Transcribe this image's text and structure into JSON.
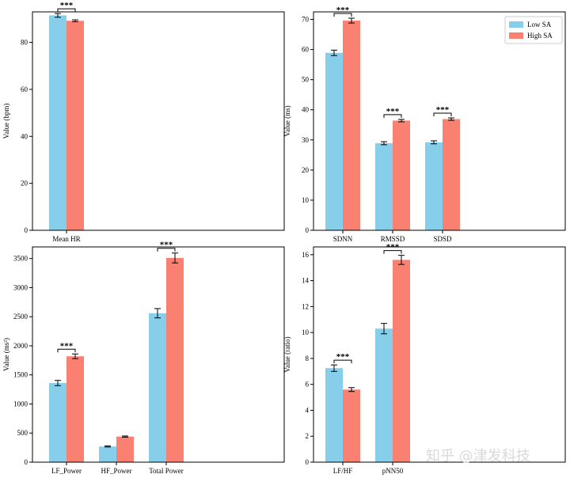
{
  "colors": {
    "low": "#87ceeb",
    "high": "#fa8072",
    "errorbar": "#000000"
  },
  "legend": {
    "placement": "top-right",
    "items": [
      "Low SA",
      "High SA"
    ]
  },
  "watermark": "知乎 @津发科技",
  "chart_data": [
    {
      "type": "bar",
      "ylabel": "Value (bpm)",
      "ylim": [
        0,
        93
      ],
      "yticks": [
        0,
        20,
        40,
        60,
        80
      ],
      "categories": [
        "Mean HR"
      ],
      "series": [
        {
          "name": "Low SA",
          "values": [
            91.5
          ],
          "err": [
            0.8
          ]
        },
        {
          "name": "High SA",
          "values": [
            89.2
          ],
          "err": [
            0.4
          ]
        }
      ],
      "significance": [
        "***"
      ],
      "show_legend": false
    },
    {
      "type": "bar",
      "ylabel": "Value (ms)",
      "ylim": [
        0,
        72.5
      ],
      "yticks": [
        0,
        10,
        20,
        30,
        40,
        50,
        60,
        70
      ],
      "categories": [
        "SDNN",
        "RMSSD",
        "SDSD"
      ],
      "series": [
        {
          "name": "Low SA",
          "values": [
            58.9,
            28.9,
            29.2
          ],
          "err": [
            0.9,
            0.5,
            0.5
          ]
        },
        {
          "name": "High SA",
          "values": [
            69.6,
            36.4,
            36.9
          ],
          "err": [
            0.8,
            0.4,
            0.4
          ]
        }
      ],
      "significance": [
        "***",
        "***",
        "***"
      ],
      "show_legend": true
    },
    {
      "type": "bar",
      "ylabel": "Value (ms²)",
      "ylim": [
        0,
        3700
      ],
      "yticks": [
        0,
        500,
        1000,
        1500,
        2000,
        2500,
        3000,
        3500
      ],
      "categories": [
        "LF_Power",
        "HF_Power",
        "Total Power"
      ],
      "series": [
        {
          "name": "Low SA",
          "values": [
            1360,
            270,
            2560
          ],
          "err": [
            45,
            10,
            80
          ]
        },
        {
          "name": "High SA",
          "values": [
            1820,
            440,
            3510
          ],
          "err": [
            40,
            10,
            85
          ]
        }
      ],
      "significance": [
        "***",
        "",
        "***"
      ],
      "show_legend": false
    },
    {
      "type": "bar",
      "ylabel": "Value (ratio)",
      "ylim": [
        0,
        16.6
      ],
      "yticks": [
        0,
        2,
        4,
        6,
        8,
        10,
        12,
        14,
        16
      ],
      "categories": [
        "LF/HF",
        "pNN50"
      ],
      "series": [
        {
          "name": "Low SA",
          "values": [
            7.25,
            10.3
          ],
          "err": [
            0.25,
            0.4
          ]
        },
        {
          "name": "High SA",
          "values": [
            5.6,
            15.6
          ],
          "err": [
            0.15,
            0.35
          ]
        }
      ],
      "significance": [
        "***",
        "***"
      ],
      "show_legend": false
    }
  ]
}
